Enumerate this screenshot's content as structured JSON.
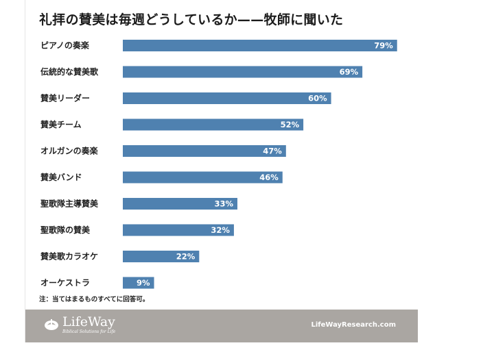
{
  "chart_data": {
    "type": "bar",
    "orientation": "horizontal",
    "title": "礼拝の賛美は毎週どうしているか——牧師に聞いた",
    "categories": [
      "ピアノの奏楽",
      "伝統的な賛美歌",
      "賛美リーダー",
      "賛美チーム",
      "オルガンの奏楽",
      "賛美バンド",
      "聖歌隊主導賛美",
      "聖歌隊の賛美",
      "賛美歌カラオケ",
      "オーケストラ"
    ],
    "values": [
      79,
      69,
      60,
      52,
      47,
      46,
      33,
      32,
      22,
      9
    ],
    "value_labels": [
      "79%",
      "69%",
      "60%",
      "52%",
      "47%",
      "46%",
      "33%",
      "32%",
      "22%",
      "9%"
    ],
    "xlim": [
      0,
      100
    ],
    "xlabel": "",
    "ylabel": "",
    "grid": false,
    "bar_color": "#4f81b0"
  },
  "note": "注：当てはまるものすべてに回答可。",
  "footer": {
    "logo_name": "LifeWay",
    "logo_tagline": "Biblical Solutions for Life",
    "logo_icon": "lifeway-logo-icon",
    "site": "LifeWayResearch.com",
    "background_color": "#aaa6a2"
  }
}
